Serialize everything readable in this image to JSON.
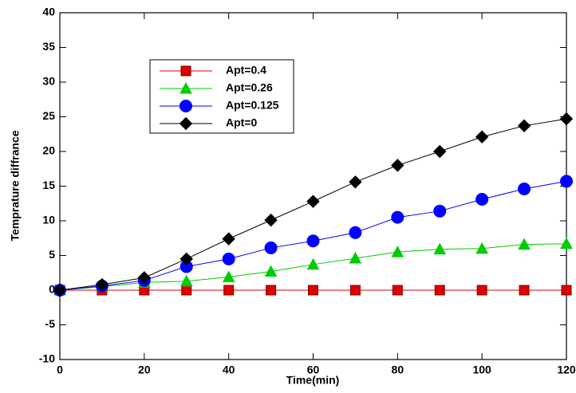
{
  "chart_data": {
    "type": "line",
    "x_label": "Time(min)",
    "y_label": "Temprature diffrance",
    "x": [
      0,
      10,
      20,
      30,
      40,
      50,
      60,
      70,
      80,
      90,
      100,
      110,
      120
    ],
    "series": [
      {
        "name": "Apt=0.4",
        "color": "#e00000",
        "marker": "square",
        "values": [
          0,
          0,
          0,
          0,
          0,
          0,
          0,
          0,
          0,
          0,
          0,
          0,
          0
        ]
      },
      {
        "name": "Apt=0.26",
        "color": "#00cc00",
        "marker": "triangle",
        "values": [
          0,
          0.5,
          1.1,
          1.3,
          1.9,
          2.7,
          3.7,
          4.6,
          5.5,
          5.9,
          6.0,
          6.6,
          6.7
        ]
      },
      {
        "name": "Apt=0.125",
        "color": "#0000ff",
        "marker": "circle",
        "values": [
          0,
          0.6,
          1.4,
          3.4,
          4.5,
          6.1,
          7.1,
          8.3,
          10.5,
          11.4,
          13.1,
          14.6,
          15.7
        ]
      },
      {
        "name": "Apt=0",
        "color": "#000000",
        "marker": "diamond",
        "values": [
          0,
          0.8,
          1.8,
          4.5,
          7.4,
          10.1,
          12.8,
          15.6,
          18.0,
          20.0,
          22.1,
          23.7,
          24.7
        ]
      }
    ],
    "xlim": [
      0,
      120
    ],
    "xticks": [
      0,
      20,
      40,
      60,
      80,
      100,
      120
    ],
    "ylim": [
      -10,
      40
    ],
    "yticks": [
      -10,
      -5,
      0,
      5,
      10,
      15,
      20,
      25,
      30,
      35,
      40
    ],
    "legend": "upper-left"
  }
}
